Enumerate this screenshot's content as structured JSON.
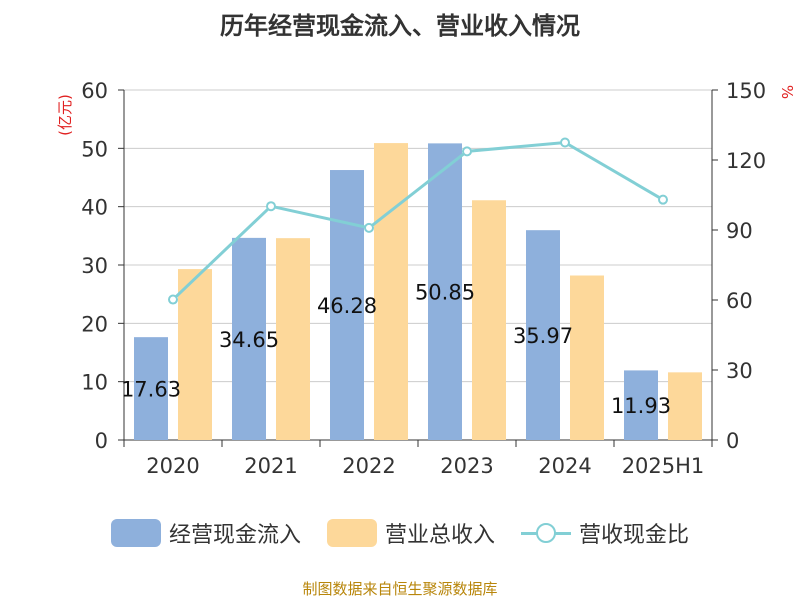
{
  "title": "历年经营现金流入、营业收入情况",
  "source": "制图数据来自恒生聚源数据库",
  "chart_data": {
    "type": "bar",
    "categories": [
      "2020",
      "2021",
      "2022",
      "2023",
      "2024",
      "2025H1"
    ],
    "series": [
      {
        "name": "经营现金流入",
        "type": "bar",
        "axis": "left",
        "color": "#8eb0dc",
        "values": [
          17.63,
          34.65,
          46.28,
          50.85,
          35.97,
          11.93
        ],
        "labels": [
          "17.63",
          "34.65",
          "46.28",
          "50.85",
          "35.97",
          "11.93"
        ]
      },
      {
        "name": "营业总收入",
        "type": "bar",
        "axis": "left",
        "color": "#fdd89a",
        "values": [
          29.3,
          34.6,
          50.9,
          41.1,
          28.2,
          11.6
        ]
      },
      {
        "name": "营收现金比",
        "type": "line",
        "axis": "right",
        "color": "#82cfd5",
        "values": [
          60.2,
          100.2,
          90.9,
          123.7,
          127.5,
          103.0
        ]
      }
    ],
    "y_left": {
      "label": "(亿元)",
      "ticks": [
        "0",
        "10",
        "20",
        "30",
        "40",
        "50",
        "60"
      ],
      "min": 0,
      "max": 60
    },
    "y_right": {
      "label": "%",
      "ticks": [
        "0",
        "30",
        "60",
        "90",
        "120",
        "150"
      ],
      "min": 0,
      "max": 150
    },
    "grid": true,
    "legend_position": "bottom"
  }
}
